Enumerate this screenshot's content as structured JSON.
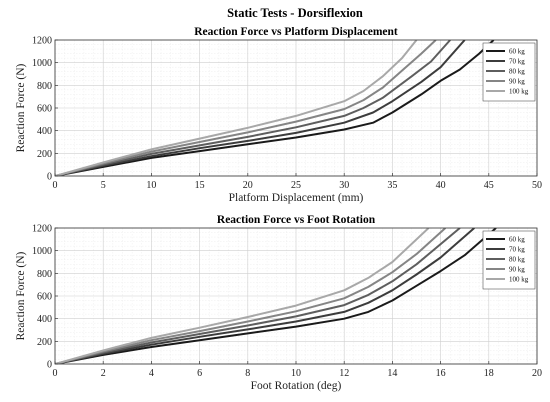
{
  "figure": {
    "title": "Static Tests - Dorsiflexion"
  },
  "chart_data": [
    {
      "type": "line",
      "title": "Reaction Force vs Platform Displacement",
      "xlabel": "Platform Displacement (mm)",
      "ylabel": "Reaction Force (N)",
      "xlim": [
        0,
        50
      ],
      "ylim": [
        0,
        1200
      ],
      "xticks": [
        0,
        5,
        10,
        15,
        20,
        25,
        30,
        35,
        40,
        45,
        50
      ],
      "yticks": [
        0,
        200,
        400,
        600,
        800,
        1000,
        1200
      ],
      "grid": true,
      "legend": "top-right",
      "series": [
        {
          "name": "60 kg",
          "color": "#1a1a1a",
          "x": [
            0,
            5,
            10,
            15,
            20,
            25,
            30,
            33,
            35,
            38,
            40,
            42,
            44,
            45.5
          ],
          "y": [
            0,
            80,
            160,
            220,
            280,
            340,
            410,
            470,
            560,
            720,
            840,
            940,
            1080,
            1200
          ]
        },
        {
          "name": "70 kg",
          "color": "#3c3c3c",
          "x": [
            0,
            5,
            10,
            15,
            20,
            25,
            30,
            33,
            35,
            38,
            40,
            42.5
          ],
          "y": [
            0,
            90,
            175,
            245,
            310,
            380,
            470,
            560,
            660,
            830,
            960,
            1200
          ]
        },
        {
          "name": "80 kg",
          "color": "#5e5e5e",
          "x": [
            0,
            5,
            10,
            15,
            20,
            25,
            30,
            32,
            34,
            37,
            39,
            41
          ],
          "y": [
            0,
            100,
            195,
            270,
            345,
            430,
            530,
            600,
            690,
            880,
            1010,
            1200
          ]
        },
        {
          "name": "90 kg",
          "color": "#858585",
          "x": [
            0,
            5,
            10,
            15,
            20,
            25,
            30,
            32,
            34,
            36,
            38,
            39.5
          ],
          "y": [
            0,
            110,
            215,
            300,
            385,
            480,
            590,
            670,
            780,
            930,
            1080,
            1200
          ]
        },
        {
          "name": "100 kg",
          "color": "#a8a8a8",
          "x": [
            0,
            5,
            10,
            15,
            20,
            25,
            30,
            32,
            34,
            36,
            37.5
          ],
          "y": [
            0,
            120,
            235,
            330,
            425,
            530,
            660,
            750,
            880,
            1040,
            1200
          ]
        }
      ]
    },
    {
      "type": "line",
      "title": "Reaction Force vs Foot Rotation",
      "xlabel": "Foot Rotation (deg)",
      "ylabel": "Reaction Force (N)",
      "xlim": [
        0,
        20
      ],
      "ylim": [
        0,
        1200
      ],
      "xticks": [
        0,
        2,
        4,
        6,
        8,
        10,
        12,
        14,
        16,
        18,
        20
      ],
      "yticks": [
        0,
        200,
        400,
        600,
        800,
        1000,
        1200
      ],
      "grid": true,
      "legend": "top-right",
      "series": [
        {
          "name": "60 kg",
          "color": "#1a1a1a",
          "x": [
            0,
            2,
            4,
            6,
            8,
            10,
            12,
            13,
            14,
            15,
            16,
            17,
            18.3
          ],
          "y": [
            0,
            80,
            150,
            210,
            270,
            330,
            400,
            460,
            560,
            690,
            820,
            960,
            1200
          ]
        },
        {
          "name": "70 kg",
          "color": "#3c3c3c",
          "x": [
            0,
            2,
            4,
            6,
            8,
            10,
            12,
            13,
            14,
            15,
            16,
            17.4
          ],
          "y": [
            0,
            90,
            170,
            240,
            305,
            375,
            460,
            540,
            650,
            790,
            940,
            1200
          ]
        },
        {
          "name": "80 kg",
          "color": "#5e5e5e",
          "x": [
            0,
            2,
            4,
            6,
            8,
            10,
            12,
            13,
            14,
            15,
            16.8
          ],
          "y": [
            0,
            100,
            190,
            265,
            340,
            420,
            520,
            610,
            730,
            880,
            1200
          ]
        },
        {
          "name": "90 kg",
          "color": "#858585",
          "x": [
            0,
            2,
            4,
            6,
            8,
            10,
            12,
            13,
            14,
            15,
            16.2
          ],
          "y": [
            0,
            110,
            210,
            290,
            375,
            465,
            580,
            680,
            810,
            970,
            1200
          ]
        },
        {
          "name": "100 kg",
          "color": "#a8a8a8",
          "x": [
            0,
            2,
            4,
            6,
            8,
            10,
            12,
            13,
            14,
            15.5
          ],
          "y": [
            0,
            120,
            230,
            320,
            415,
            515,
            650,
            760,
            900,
            1200
          ]
        }
      ]
    }
  ]
}
